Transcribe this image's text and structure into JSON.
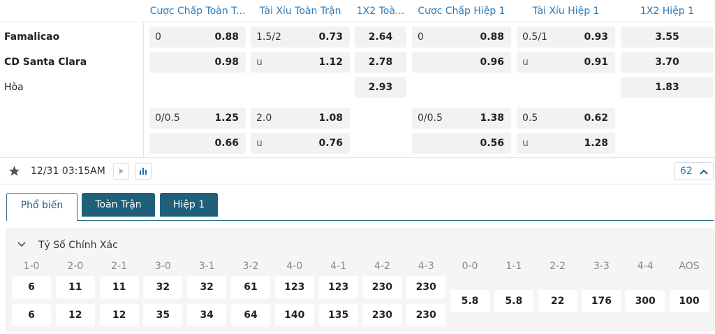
{
  "header": {
    "columns": [
      "Cược Chấp Toàn T...",
      "Tài Xỉu Toàn Trận",
      "1X2 Toà...",
      "Cược Chấp Hiệp 1",
      "Tài Xỉu Hiệp 1",
      "1X2 Hiệp 1"
    ]
  },
  "teams": [
    "Famalicao",
    "CD Santa Clara",
    "Hòa"
  ],
  "odds_rows": [
    [
      {
        "line": "0",
        "odds": "0.88"
      },
      {
        "line": "1.5/2",
        "odds": "0.73"
      },
      {
        "odds": "2.64"
      },
      {
        "line": "0",
        "odds": "0.88"
      },
      {
        "line": "0.5/1",
        "odds": "0.93"
      },
      {
        "odds": "3.55"
      }
    ],
    [
      {
        "odds": "0.98"
      },
      {
        "line": "u",
        "odds": "1.12"
      },
      {
        "odds": "2.78"
      },
      {
        "odds": "0.96"
      },
      {
        "line": "u",
        "odds": "0.91"
      },
      {
        "odds": "3.70"
      }
    ],
    [
      null,
      null,
      {
        "odds": "2.93"
      },
      null,
      null,
      {
        "odds": "1.83"
      }
    ],
    [
      {
        "line": "0/0.5",
        "odds": "1.25"
      },
      {
        "line": "2.0",
        "odds": "1.08"
      },
      null,
      {
        "line": "0/0.5",
        "odds": "1.38"
      },
      {
        "line": "0.5",
        "odds": "0.62"
      },
      null
    ],
    [
      {
        "odds": "0.66"
      },
      {
        "line": "u",
        "odds": "0.76"
      },
      null,
      {
        "odds": "0.56"
      },
      {
        "line": "u",
        "odds": "1.28"
      },
      null
    ]
  ],
  "toolbar": {
    "datetime": "12/31 03:15AM",
    "count": 62
  },
  "tabs": [
    "Phổ biến",
    "Toàn Trận",
    "Hiệp 1"
  ],
  "section": {
    "title": "Tỷ Số Chính Xác",
    "scores": [
      {
        "label": "1-0",
        "values": [
          6,
          6
        ]
      },
      {
        "label": "2-0",
        "values": [
          11,
          12
        ]
      },
      {
        "label": "2-1",
        "values": [
          11,
          12
        ]
      },
      {
        "label": "3-0",
        "values": [
          32,
          35
        ]
      },
      {
        "label": "3-1",
        "values": [
          32,
          34
        ]
      },
      {
        "label": "3-2",
        "values": [
          61,
          64
        ]
      },
      {
        "label": "4-0",
        "values": [
          123,
          140
        ]
      },
      {
        "label": "4-1",
        "values": [
          123,
          135
        ]
      },
      {
        "label": "4-2",
        "values": [
          230,
          230
        ]
      },
      {
        "label": "4-3",
        "values": [
          230,
          230
        ]
      },
      {
        "label": "0-0",
        "values": [
          5.8
        ]
      },
      {
        "label": "1-1",
        "values": [
          5.8
        ]
      },
      {
        "label": "2-2",
        "values": [
          22
        ]
      },
      {
        "label": "3-3",
        "values": [
          176
        ]
      },
      {
        "label": "4-4",
        "values": [
          300
        ]
      },
      {
        "label": "AOS",
        "values": [
          100
        ]
      }
    ]
  }
}
